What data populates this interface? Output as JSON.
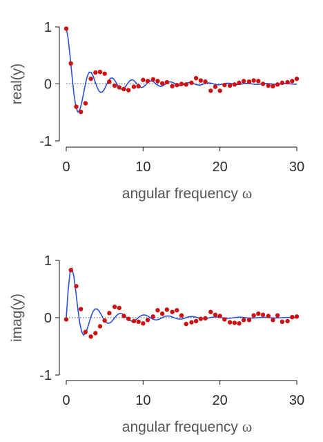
{
  "chart_data": [
    {
      "type": "scatter",
      "xlabel": "angular frequency",
      "xlabel_symbol": "ω",
      "ylabel": "real(y)",
      "xlim": [
        0,
        30
      ],
      "ylim": [
        -1,
        1
      ],
      "x_ticks": [
        0,
        10,
        20,
        30
      ],
      "y_ticks": [
        -1,
        0,
        1
      ],
      "y_tick_labels": [
        "-1",
        "0",
        "1"
      ],
      "zero_line": true,
      "fit_line": {
        "x": [
          0,
          0.25,
          0.5,
          0.75,
          1,
          1.25,
          1.5,
          1.75,
          2,
          2.25,
          2.5,
          2.75,
          3,
          3.25,
          3.5,
          3.75,
          4,
          4.25,
          4.5,
          4.75,
          5,
          5.25,
          5.5,
          5.75,
          6,
          6.25,
          6.5,
          6.75,
          7,
          7.25,
          7.5,
          7.75,
          8,
          8.25,
          8.5,
          8.75,
          9,
          9.25,
          9.5,
          9.75,
          10,
          10.25,
          10.5,
          10.75,
          11,
          11.25,
          11.5,
          11.75,
          12,
          12.25,
          12.5,
          12.75,
          13,
          13.25,
          13.5,
          13.75,
          14,
          14.25,
          14.5,
          14.75,
          15,
          15.25,
          15.5,
          15.75,
          16,
          16.25,
          16.5,
          16.75,
          17,
          17.25,
          17.5,
          17.75,
          18,
          18.25,
          18.5,
          18.75,
          19,
          19.25,
          19.5,
          19.75,
          20,
          20.25,
          20.5,
          20.75,
          21,
          21.25,
          21.5,
          21.75,
          22,
          22.25,
          22.5,
          22.75,
          23,
          23.25,
          23.5,
          23.75,
          24,
          24.25,
          24.5,
          24.75,
          25,
          25.25,
          25.5,
          25.75,
          26,
          26.25,
          26.5,
          26.75,
          27,
          27.25,
          27.5,
          27.75,
          28,
          28.25,
          28.5,
          28.75,
          29,
          29.25,
          29.5,
          29.75,
          30
        ],
        "y": [
          0.985,
          0.791,
          0.485,
          0.138,
          -0.178,
          -0.399,
          -0.492,
          -0.462,
          -0.339,
          -0.168,
          0.005,
          0.139,
          0.207,
          0.202,
          0.137,
          0.04,
          -0.055,
          -0.123,
          -0.151,
          -0.136,
          -0.083,
          -0.011,
          0.056,
          0.098,
          0.105,
          0.076,
          0.023,
          -0.038,
          -0.082,
          -0.099,
          -0.083,
          -0.041,
          0.01,
          0.053,
          0.073,
          0.065,
          0.033,
          -0.009,
          -0.045,
          -0.063,
          -0.056,
          -0.029,
          0.008,
          0.038,
          0.052,
          0.046,
          0.023,
          -0.007,
          -0.032,
          -0.043,
          -0.038,
          -0.018,
          0.007,
          0.028,
          0.037,
          0.032,
          0.015,
          -0.006,
          -0.023,
          -0.031,
          -0.027,
          -0.012,
          0.005,
          0.019,
          0.026,
          0.022,
          0.01,
          -0.005,
          -0.016,
          -0.021,
          -0.018,
          -0.008,
          0.004,
          0.014,
          0.018,
          0.015,
          0.007,
          -0.003,
          -0.012,
          -0.015,
          -0.013,
          -0.006,
          0.003,
          0.01,
          0.013,
          0.011,
          0.005,
          -0.003,
          -0.008,
          -0.011,
          -0.009,
          -0.004,
          0.002,
          0.007,
          0.009,
          0.008,
          0.004,
          -0.002,
          -0.006,
          -0.008,
          -0.007,
          -0.003,
          0.002,
          0.005,
          0.007,
          0.006,
          0.003,
          -0.001,
          -0.005,
          -0.006,
          -0.005,
          -0.002,
          0.001,
          0.004,
          0.005,
          0.004,
          0.002,
          -0.001,
          -0.004,
          -0.005,
          -0.004
        ],
        "color": "#2b4fd8"
      },
      "points": {
        "x": [
          0,
          0.6,
          1.3,
          1.9,
          2.5,
          3.2,
          3.8,
          4.4,
          5.0,
          5.6,
          6.3,
          6.9,
          7.5,
          8.1,
          8.8,
          9.4,
          10.0,
          10.6,
          11.3,
          11.9,
          12.5,
          13.1,
          13.8,
          14.4,
          15.0,
          15.6,
          16.3,
          16.9,
          17.5,
          18.1,
          18.8,
          19.4,
          20.0,
          20.6,
          21.3,
          21.9,
          22.5,
          23.1,
          23.8,
          24.4,
          25.0,
          25.6,
          26.3,
          26.9,
          27.5,
          28.1,
          28.8,
          29.4,
          30.0
        ],
        "y": [
          0.97,
          0.36,
          -0.4,
          -0.49,
          -0.34,
          0.09,
          0.2,
          0.21,
          0.18,
          0.04,
          -0.03,
          -0.06,
          -0.09,
          -0.11,
          -0.05,
          -0.04,
          0.07,
          0.05,
          0.08,
          0.05,
          0.01,
          0.03,
          -0.04,
          -0.02,
          0.0,
          -0.01,
          0.02,
          0.1,
          0.06,
          0.04,
          -0.12,
          -0.05,
          -0.12,
          -0.02,
          -0.03,
          -0.01,
          0.02,
          0.05,
          0.04,
          0.06,
          0.05,
          0.0,
          -0.03,
          -0.04,
          -0.01,
          0.02,
          0.03,
          0.05,
          0.09
        ],
        "color": "#cc1111"
      }
    },
    {
      "type": "scatter",
      "xlabel": "angular frequency",
      "xlabel_symbol": "ω",
      "ylabel": "imag(y)",
      "xlim": [
        0,
        30
      ],
      "ylim": [
        -1,
        1
      ],
      "x_ticks": [
        0,
        10,
        20,
        30
      ],
      "y_ticks": [
        -1,
        0,
        1
      ],
      "y_tick_labels": [
        "-1",
        "0",
        "1"
      ],
      "zero_line": true,
      "fit_line": {
        "x": [
          0,
          0.25,
          0.5,
          0.75,
          1,
          1.25,
          1.5,
          1.75,
          2,
          2.25,
          2.5,
          2.75,
          3,
          3.25,
          3.5,
          3.75,
          4,
          4.25,
          4.5,
          4.75,
          5,
          5.25,
          5.5,
          5.75,
          6,
          6.25,
          6.5,
          6.75,
          7,
          7.25,
          7.5,
          7.75,
          8,
          8.25,
          8.5,
          8.75,
          9,
          9.25,
          9.5,
          9.75,
          10,
          10.25,
          10.5,
          10.75,
          11,
          11.25,
          11.5,
          11.75,
          12,
          12.25,
          12.5,
          12.75,
          13,
          13.25,
          13.5,
          13.75,
          14,
          14.25,
          14.5,
          14.75,
          15,
          15.25,
          15.5,
          15.75,
          16,
          16.25,
          16.5,
          16.75,
          17,
          17.25,
          17.5,
          17.75,
          18,
          18.25,
          18.5,
          18.75,
          19,
          19.25,
          19.5,
          19.75,
          20,
          20.25,
          20.5,
          20.75,
          21,
          21.25,
          21.5,
          21.75,
          22,
          22.25,
          22.5,
          22.75,
          23,
          23.25,
          23.5,
          23.75,
          24,
          24.25,
          24.5,
          24.75,
          25,
          25.25,
          25.5,
          25.75,
          26,
          26.25,
          26.5,
          26.75,
          27,
          27.25,
          27.5,
          27.75,
          28,
          28.25,
          28.5,
          28.75,
          29,
          29.25,
          29.5,
          29.75,
          30
        ],
        "y": [
          0.0,
          0.484,
          0.795,
          0.858,
          0.715,
          0.449,
          0.16,
          -0.083,
          -0.243,
          -0.304,
          -0.276,
          -0.188,
          -0.075,
          0.031,
          0.111,
          0.151,
          0.152,
          0.12,
          0.065,
          0.003,
          -0.052,
          -0.087,
          -0.098,
          -0.085,
          -0.053,
          -0.01,
          0.031,
          0.062,
          0.075,
          0.068,
          0.045,
          0.011,
          -0.022,
          -0.048,
          -0.06,
          -0.057,
          -0.041,
          -0.015,
          0.013,
          0.035,
          0.047,
          0.047,
          0.036,
          0.016,
          -0.006,
          -0.025,
          -0.036,
          -0.038,
          -0.031,
          -0.017,
          0.001,
          0.017,
          0.028,
          0.031,
          0.027,
          0.016,
          0.002,
          -0.011,
          -0.021,
          -0.025,
          -0.023,
          -0.015,
          -0.004,
          0.007,
          0.016,
          0.02,
          0.019,
          0.014,
          0.005,
          -0.004,
          -0.011,
          -0.016,
          -0.016,
          -0.012,
          -0.006,
          0.002,
          0.008,
          0.012,
          0.013,
          0.011,
          0.006,
          0.0,
          -0.005,
          -0.009,
          -0.011,
          -0.01,
          -0.006,
          -0.001,
          0.003,
          0.007,
          0.009,
          0.008,
          0.006,
          0.002,
          -0.002,
          -0.005,
          -0.007,
          -0.007,
          -0.005,
          -0.002,
          0.001,
          0.004,
          0.005,
          0.006,
          0.005,
          0.003,
          0.0,
          -0.003,
          -0.004,
          -0.005,
          -0.004,
          -0.003,
          0.0,
          0.002,
          0.003,
          0.004,
          0.004,
          0.003,
          0.001,
          -0.001,
          -0.003
        ],
        "color": "#2b4fd8"
      },
      "points": {
        "x": [
          0,
          0.6,
          1.3,
          1.9,
          2.5,
          3.2,
          3.8,
          4.4,
          5.0,
          5.6,
          6.3,
          6.9,
          7.5,
          8.1,
          8.8,
          9.4,
          10.0,
          10.6,
          11.3,
          11.9,
          12.5,
          13.1,
          13.8,
          14.4,
          15.0,
          15.6,
          16.3,
          16.9,
          17.5,
          18.1,
          18.8,
          19.4,
          20.0,
          20.6,
          21.3,
          21.9,
          22.5,
          23.1,
          23.8,
          24.4,
          25.0,
          25.6,
          26.3,
          26.9,
          27.5,
          28.1,
          28.8,
          29.4,
          30.0
        ],
        "y": [
          -0.03,
          0.83,
          0.55,
          0.15,
          -0.25,
          -0.33,
          -0.27,
          -0.15,
          -0.05,
          0.08,
          0.19,
          0.17,
          0.03,
          -0.02,
          -0.06,
          -0.07,
          -0.1,
          -0.04,
          0.02,
          0.13,
          0.07,
          0.14,
          0.1,
          0.13,
          0.04,
          -0.11,
          -0.08,
          -0.06,
          -0.02,
          -0.01,
          0.1,
          0.05,
          0.03,
          -0.03,
          -0.08,
          -0.09,
          -0.1,
          -0.04,
          -0.04,
          0.04,
          0.07,
          0.05,
          0.03,
          -0.04,
          0.04,
          -0.07,
          -0.06,
          0.01,
          0.02
        ],
        "color": "#cc1111"
      }
    }
  ]
}
